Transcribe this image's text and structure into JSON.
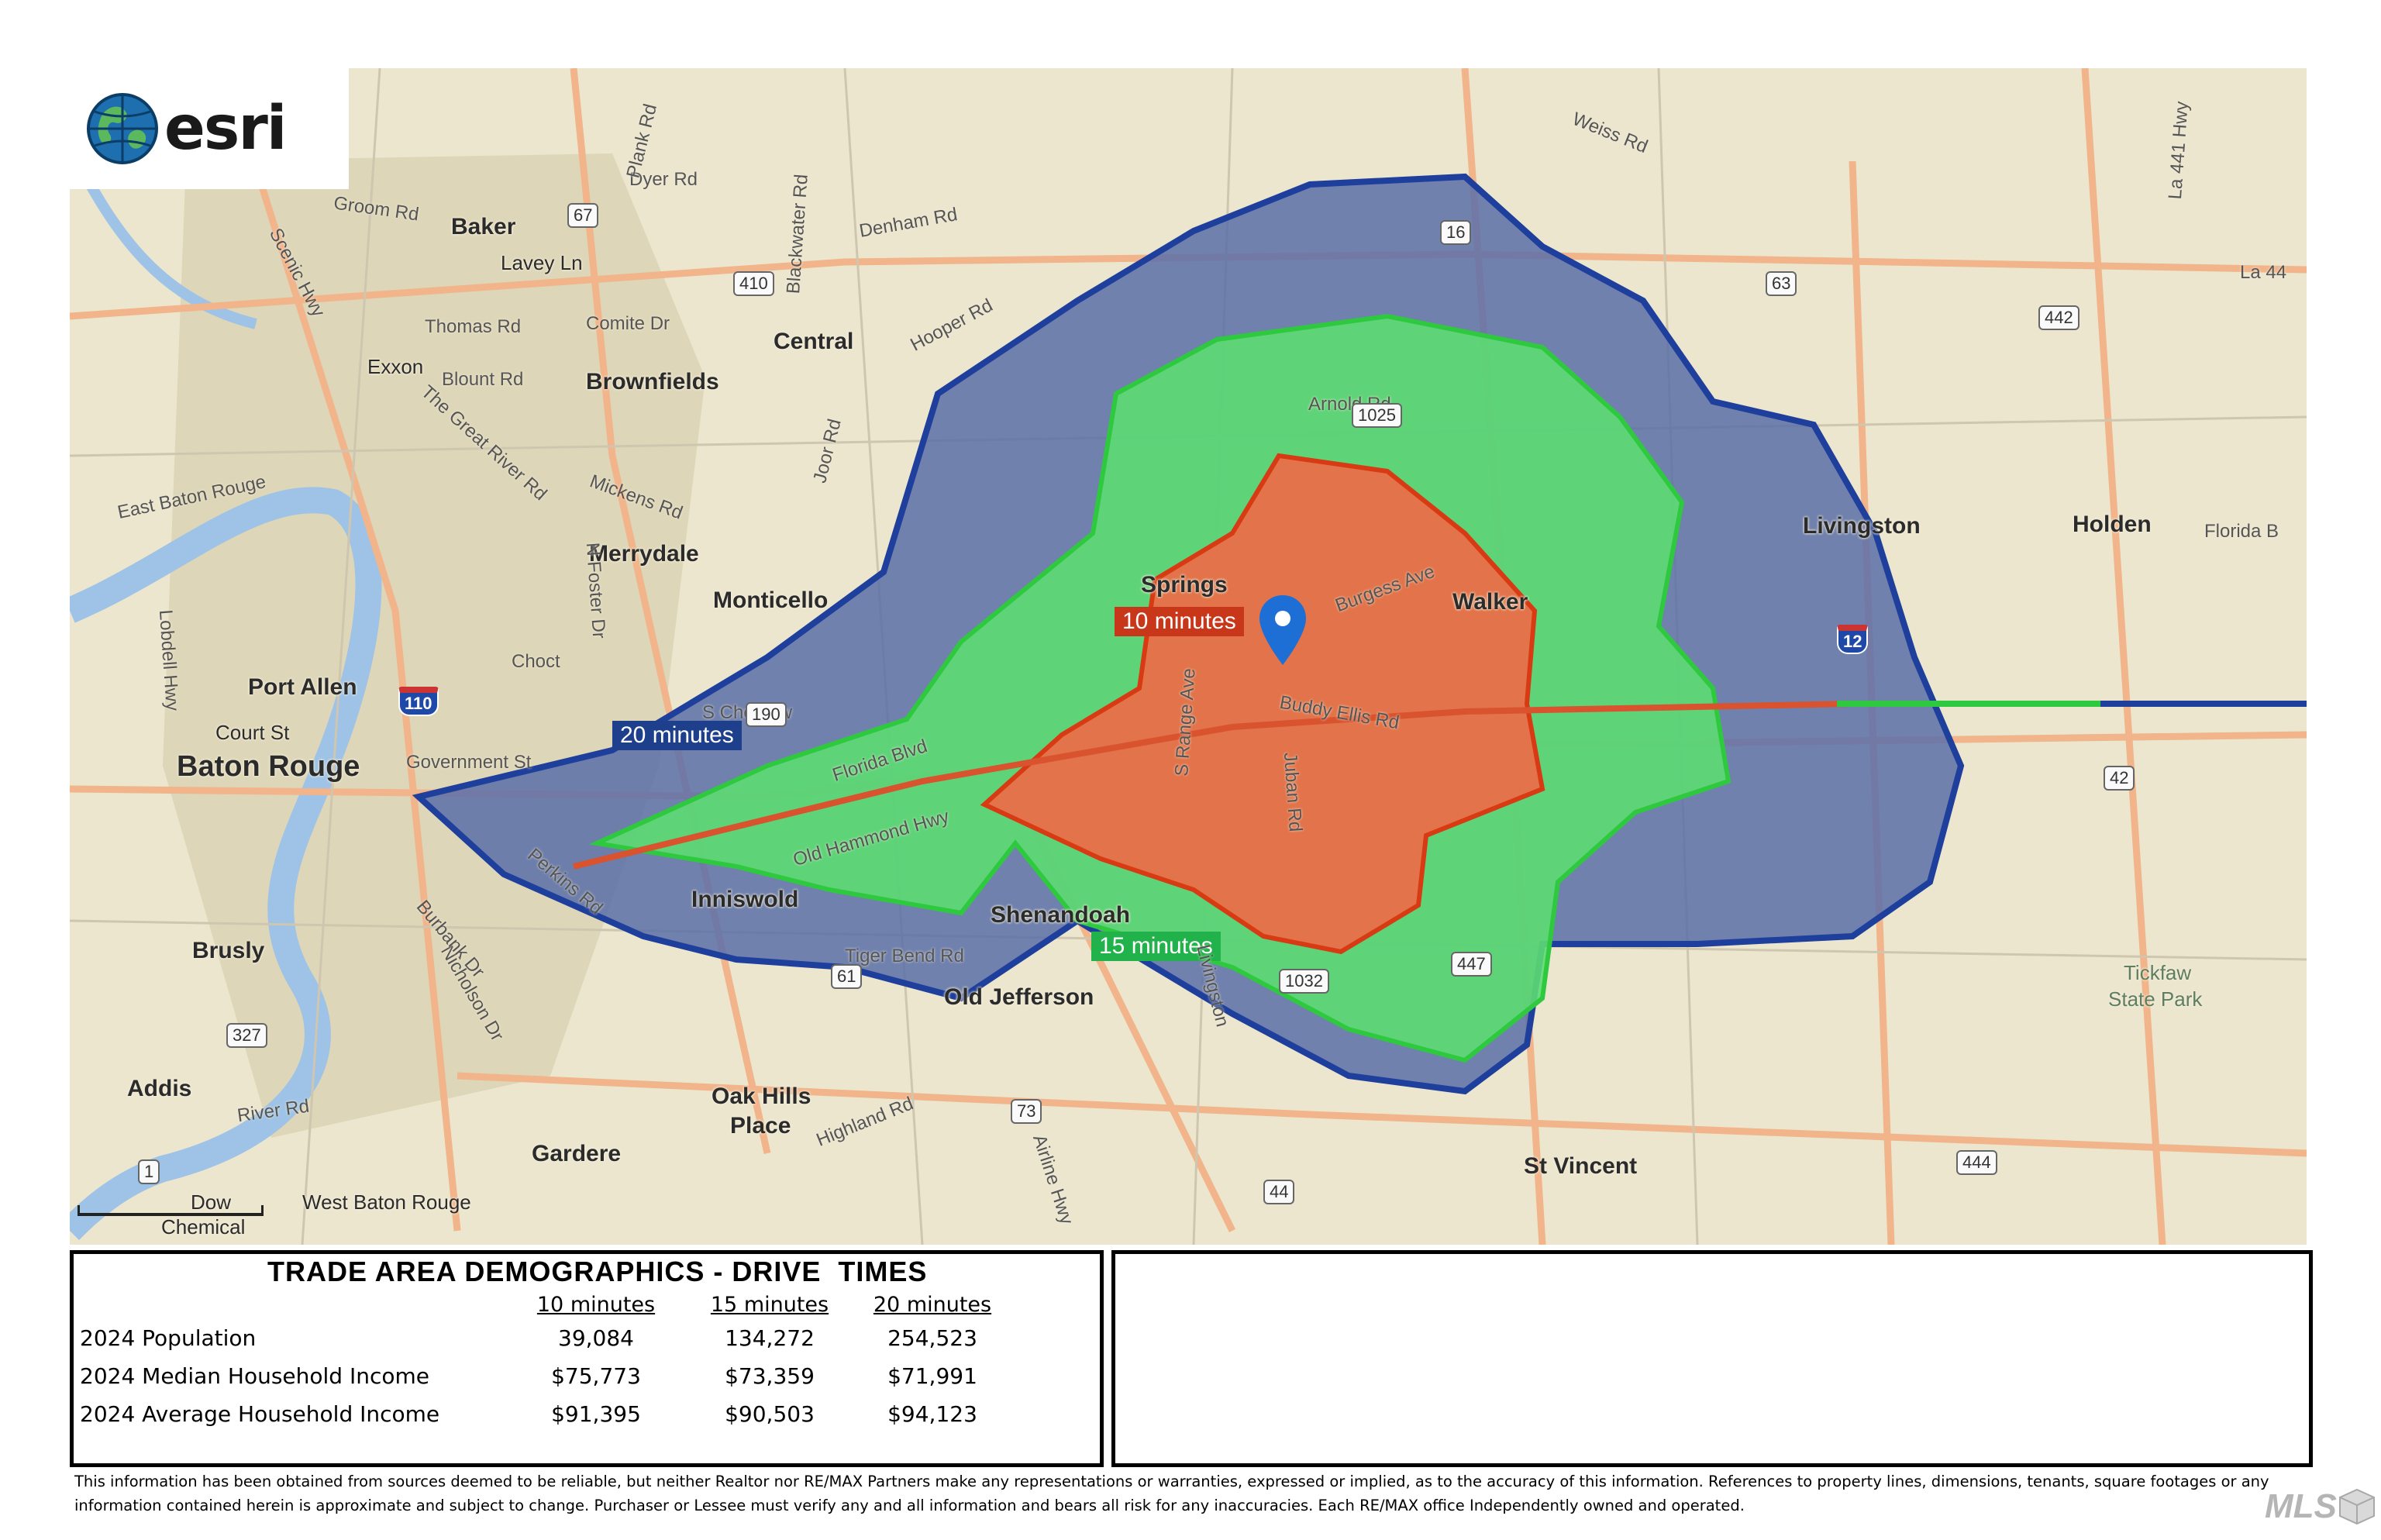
{
  "logo": {
    "text": "esri",
    "icon": "globe-icon"
  },
  "map": {
    "drive_time_labels": {
      "ten": "10 minutes",
      "fifteen": "15 minutes",
      "twenty": "20 minutes"
    },
    "marker": "map-pin-icon",
    "scale": "6km",
    "colors": {
      "ten": "#ee6a47",
      "fifteen": "#5ddc72",
      "twenty": "#5a6ea8",
      "twenty_outline": "#1e3f9c"
    },
    "places": [
      "Baton Rouge",
      "Port Allen",
      "Baker",
      "Central",
      "Brownfields",
      "Merrydale",
      "Monticello",
      "Inniswold",
      "Shenandoah",
      "Old Jefferson",
      "Oak Hills",
      "Place",
      "Brusly",
      "Addis",
      "Gardere",
      "Walker",
      "Holden",
      "Livingston",
      "Springs",
      "Tickfaw",
      "State Park",
      "St Vincent",
      "Lavey Ln",
      "Exxon",
      "Court St",
      "Dow",
      "Chemical",
      "West Baton Rouge"
    ],
    "roads": [
      "Groom Rd",
      "Dyer Rd",
      "Denham Rd",
      "Thomas Rd",
      "Comite Dr",
      "Blount Rd",
      "Hooper Rd",
      "Mickens Rd",
      "East Baton Rouge",
      "Florida Blvd",
      "Old Hammond Hwy",
      "Government St",
      "S Choctaw",
      "Burgess Ave",
      "Buddy Ellis Rd",
      "Juban Rd",
      "S Range Ave",
      "Arnold Rd",
      "Weiss Rd",
      "Florida B",
      "Lobdell Hwy",
      "River Rd",
      "Highland Rd",
      "Airline Hwy",
      "Nicholson Dr",
      "Burbank Dr",
      "Perkins Rd",
      "Tiger Bend Rd",
      "Livingston",
      "La 441 Hwy",
      "La 44",
      "Plank Rd",
      "Blackwater Rd",
      "N Foster Dr",
      "Scenic Hwy",
      "The Great River Rd",
      "Joor Rd",
      "Choct"
    ],
    "shields": [
      "67",
      "410",
      "63",
      "442",
      "1025",
      "190",
      "110",
      "12",
      "61",
      "73",
      "327",
      "1",
      "42",
      "444",
      "447",
      "16",
      "1032",
      "44"
    ]
  },
  "demographics": {
    "title": "TRADE AREA DEMOGRAPHICS - DRIVE  TIMES",
    "columns": [
      "10 minutes",
      "15 minutes",
      "20 minutes"
    ],
    "rows": [
      {
        "label": "2024 Population",
        "values": [
          "39,084",
          "134,272",
          "254,523"
        ]
      },
      {
        "label": "2024 Median Household Income",
        "values": [
          "$75,773",
          "$73,359",
          "$71,991"
        ]
      },
      {
        "label": "2024 Average Household Income",
        "values": [
          "$91,395",
          "$90,503",
          "$94,123"
        ]
      }
    ]
  },
  "disclaimer": {
    "line1": "This information has been obtained from sources deemed to be reliable, but neither Realtor nor RE/MAX Partners make any representations or warranties, expressed or implied, as to the accuracy of this information. References to property lines, dimensions, tenants, square footages or any",
    "line2": "information contained herein is approximate and subject to change. Purchaser or Lessee must verify any and all information and bears all risk for any inaccuracies. Each RE/MAX office Independently owned and operated."
  },
  "watermark": {
    "text": "MLS",
    "icon": "cube-icon"
  }
}
